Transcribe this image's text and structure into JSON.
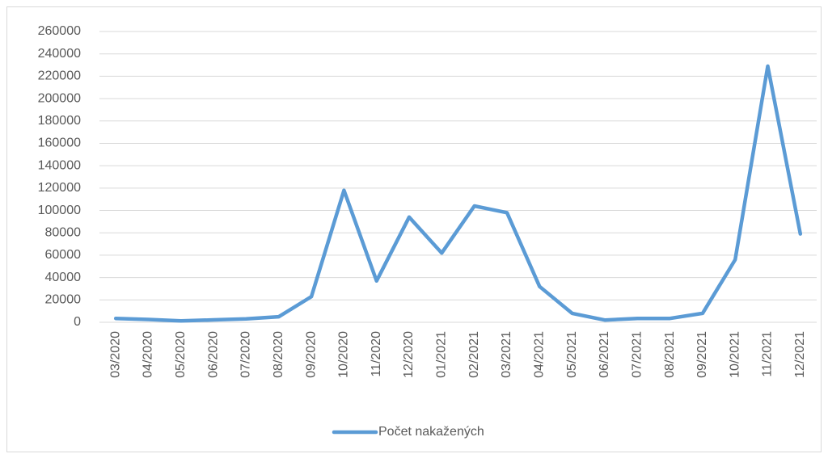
{
  "chart_data": {
    "type": "line",
    "categories": [
      "03/2020",
      "04/2020",
      "05/2020",
      "06/2020",
      "07/2020",
      "08/2020",
      "09/2020",
      "10/2020",
      "11/2020",
      "12/2020",
      "01/2021",
      "02/2021",
      "03/2021",
      "04/2021",
      "05/2021",
      "06/2021",
      "07/2021",
      "08/2021",
      "09/2021",
      "10/2021",
      "11/2021",
      "12/2021"
    ],
    "series": [
      {
        "name": "Počet nakažených",
        "color": "#5b9bd5",
        "values": [
          3500,
          2500,
          1200,
          2200,
          3000,
          5000,
          23000,
          118000,
          37000,
          94000,
          62000,
          104000,
          98000,
          32000,
          8000,
          2000,
          3500,
          3500,
          8000,
          56000,
          229000,
          79000
        ]
      }
    ],
    "ylim": [
      0,
      260000
    ],
    "yticks": [
      0,
      20000,
      40000,
      60000,
      80000,
      100000,
      120000,
      140000,
      160000,
      180000,
      200000,
      220000,
      240000,
      260000
    ],
    "grid": true,
    "legend": "bottom"
  }
}
